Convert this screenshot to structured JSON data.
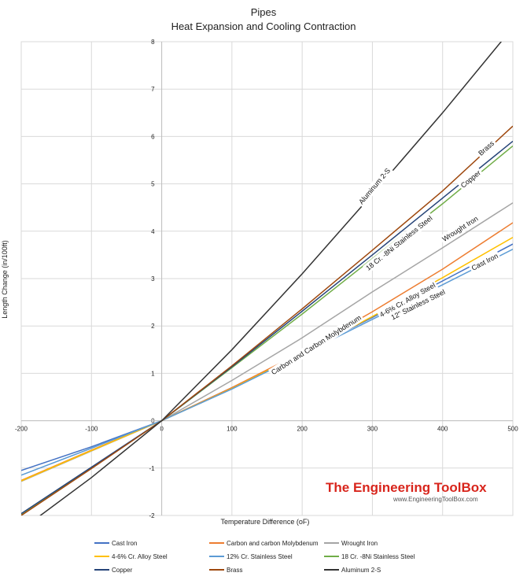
{
  "chart_data": {
    "type": "line",
    "title": "Pipes",
    "subtitle": "Heat Expansion and Cooling Contraction",
    "xlabel": "Temperature Difference (oF)",
    "ylabel": "Length Change (in/100ft)",
    "xlim": [
      -200,
      500
    ],
    "ylim": [
      -2,
      8
    ],
    "x_ticks": [
      -200,
      -100,
      0,
      100,
      200,
      300,
      400,
      500
    ],
    "y_ticks": [
      -2,
      -1,
      0,
      1,
      2,
      3,
      4,
      5,
      6,
      7,
      8
    ],
    "grid": true,
    "legend_position": "bottom",
    "series": [
      {
        "name": "Cast Iron",
        "color": "#4472c4",
        "points": [
          [
            -200,
            -1.05
          ],
          [
            -100,
            -0.55
          ],
          [
            0,
            0
          ],
          [
            100,
            0.7
          ],
          [
            200,
            1.43
          ],
          [
            300,
            2.18
          ],
          [
            400,
            2.95
          ],
          [
            500,
            3.73
          ]
        ]
      },
      {
        "name": "Carbon and carbon Molybdenum",
        "color": "#ed7d31",
        "points": [
          [
            -200,
            -1.26
          ],
          [
            -100,
            -0.62
          ],
          [
            0,
            0
          ],
          [
            100,
            0.7
          ],
          [
            200,
            1.45
          ],
          [
            300,
            2.3
          ],
          [
            400,
            3.2
          ],
          [
            500,
            4.18
          ]
        ]
      },
      {
        "name": "Wrought Iron",
        "color": "#a5a5a5",
        "points": [
          [
            -200,
            -1.28
          ],
          [
            -100,
            -0.64
          ],
          [
            0,
            0
          ],
          [
            100,
            0.85
          ],
          [
            200,
            1.75
          ],
          [
            300,
            2.72
          ],
          [
            400,
            3.65
          ],
          [
            500,
            4.6
          ]
        ]
      },
      {
        "name": "4-6% Cr. Alloy Steel",
        "color": "#ffc000",
        "points": [
          [
            -200,
            -1.27
          ],
          [
            -100,
            -0.63
          ],
          [
            0,
            0
          ],
          [
            100,
            0.68
          ],
          [
            200,
            1.42
          ],
          [
            300,
            2.2
          ],
          [
            400,
            3.02
          ],
          [
            500,
            3.87
          ]
        ]
      },
      {
        "name": "12% Cr. Stainless Steel",
        "color": "#5b9bd5",
        "points": [
          [
            -200,
            -1.15
          ],
          [
            -100,
            -0.58
          ],
          [
            0,
            0
          ],
          [
            100,
            0.67
          ],
          [
            200,
            1.4
          ],
          [
            300,
            2.14
          ],
          [
            400,
            2.87
          ],
          [
            500,
            3.62
          ]
        ]
      },
      {
        "name": "18 Cr. -8Ni Stainless Steel",
        "color": "#70ad47",
        "points": [
          [
            -200,
            -1.99
          ],
          [
            -100,
            -1.0
          ],
          [
            0,
            0
          ],
          [
            100,
            1.12
          ],
          [
            200,
            2.25
          ],
          [
            300,
            3.42
          ],
          [
            400,
            4.58
          ],
          [
            500,
            5.8
          ]
        ]
      },
      {
        "name": "Copper",
        "color": "#264478",
        "points": [
          [
            -200,
            -1.96
          ],
          [
            -100,
            -0.98
          ],
          [
            0,
            0
          ],
          [
            100,
            1.14
          ],
          [
            200,
            2.31
          ],
          [
            300,
            3.5
          ],
          [
            400,
            4.7
          ],
          [
            500,
            5.9
          ]
        ]
      },
      {
        "name": "Brass",
        "color": "#9e480e",
        "points": [
          [
            -200,
            -2.0
          ],
          [
            -100,
            -1.01
          ],
          [
            0,
            0
          ],
          [
            100,
            1.16
          ],
          [
            200,
            2.36
          ],
          [
            300,
            3.6
          ],
          [
            400,
            4.85
          ],
          [
            500,
            6.22
          ]
        ]
      },
      {
        "name": "Aluminum 2-S",
        "color": "#333333",
        "points": [
          [
            -200,
            -2.3
          ],
          [
            -100,
            -1.2
          ],
          [
            0,
            0
          ],
          [
            100,
            1.5
          ],
          [
            200,
            3.1
          ],
          [
            300,
            4.78
          ],
          [
            400,
            6.5
          ],
          [
            500,
            8.3
          ]
        ]
      }
    ],
    "annotations": [
      {
        "text": "Aluminum 2-S",
        "x": 303,
        "y": 4.95
      },
      {
        "text": "Brass",
        "x": 462,
        "y": 5.75
      },
      {
        "text": "Copper",
        "x": 440,
        "y": 5.1
      },
      {
        "text": "18 Cr. -8Ni Stainless Steel",
        "x": 338,
        "y": 3.75
      },
      {
        "text": "Wrought Iron",
        "x": 425,
        "y": 4.05
      },
      {
        "text": "Cast Iron",
        "x": 460,
        "y": 3.35
      },
      {
        "text": "4-6% Cr. Alloy Steel",
        "x": 350,
        "y": 2.55
      },
      {
        "text": "12\" Stainless Steel",
        "x": 365,
        "y": 2.45
      },
      {
        "text": "Carbon and Carbon Molybdenum",
        "x": 220,
        "y": 1.6
      }
    ]
  },
  "watermark": {
    "title": "The Engineering ToolBox",
    "url": "www.EngineeringToolBox.com"
  }
}
